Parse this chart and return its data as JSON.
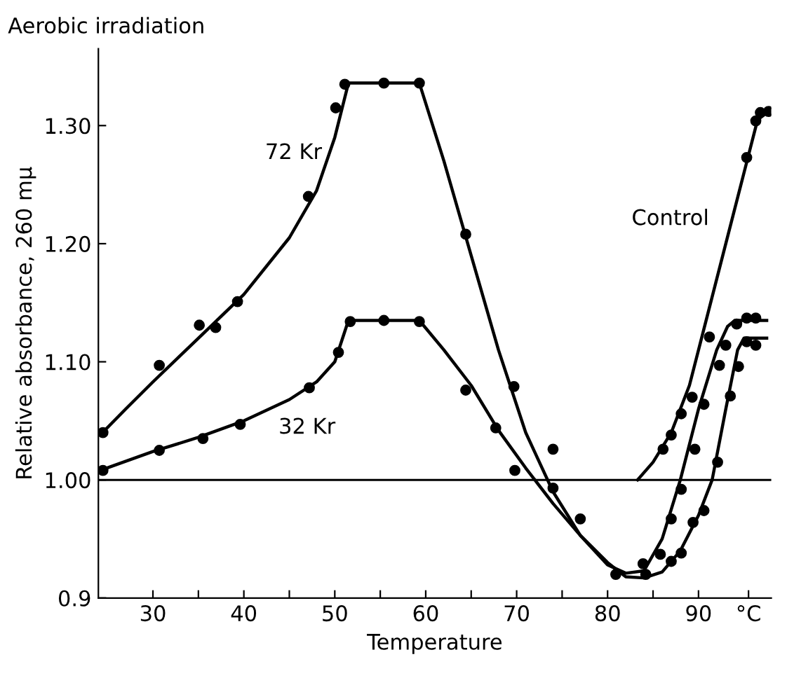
{
  "chart_data": {
    "type": "line",
    "title": "Aerobic irradiation",
    "xlabel": "Temperature",
    "ylabel": "Relative absorbance, 260 mμ",
    "xlim": [
      24,
      98
    ],
    "ylim": [
      0.9,
      1.365
    ],
    "xticks": [
      30,
      {
        "value": 35,
        "label": null
      },
      40,
      {
        "value": 45,
        "label": null
      },
      50,
      {
        "value": 55,
        "label": null
      },
      60,
      {
        "value": 65,
        "label": null
      },
      70,
      {
        "value": 75,
        "label": null
      },
      80,
      {
        "value": 85,
        "label": null
      },
      90,
      {
        "value": 95.5,
        "label": "°C"
      }
    ],
    "yticks": [
      {
        "value": 0.9,
        "label": "0.9"
      },
      {
        "value": 1.0,
        "label": "1.00"
      },
      {
        "value": 1.1,
        "label": "1.10"
      },
      {
        "value": 1.2,
        "label": "1.20"
      },
      {
        "value": 1.3,
        "label": "1.30"
      }
    ],
    "grid": false,
    "legend": false,
    "line_style": "solid",
    "ref_lines": [
      {
        "axis": "y",
        "value": 1.0,
        "label": null,
        "color": "#000000"
      }
    ],
    "series": [
      {
        "name": "72 Kr",
        "color": "#000000",
        "marker": "none",
        "x": [
          24.2,
          27,
          30,
          35,
          40,
          45,
          48,
          50,
          51.5,
          59.3,
          62,
          65,
          68,
          71,
          74,
          77,
          80,
          82,
          84,
          86,
          88,
          90,
          92,
          93.2,
          94,
          97.5
        ],
        "values": [
          1.038,
          1.06,
          1.083,
          1.12,
          1.157,
          1.205,
          1.245,
          1.29,
          1.336,
          1.336,
          1.27,
          1.19,
          1.11,
          1.04,
          0.99,
          0.953,
          0.928,
          0.921,
          0.923,
          0.95,
          1.0,
          1.06,
          1.11,
          1.13,
          1.135,
          1.135
        ]
      },
      {
        "name": "32 Kr",
        "color": "#000000",
        "marker": "none",
        "x": [
          24.2,
          30,
          35,
          40,
          45,
          48,
          50,
          51.5,
          59.3,
          62,
          65,
          68,
          71,
          74,
          77,
          80,
          82,
          84,
          86,
          88,
          90,
          91.5,
          93,
          94.3,
          95,
          97.5
        ],
        "values": [
          1.008,
          1.024,
          1.036,
          1.05,
          1.068,
          1.083,
          1.1,
          1.135,
          1.135,
          1.11,
          1.08,
          1.042,
          1.01,
          0.98,
          0.953,
          0.93,
          0.918,
          0.917,
          0.922,
          0.94,
          0.97,
          1.0,
          1.06,
          1.11,
          1.12,
          1.12
        ]
      },
      {
        "name": "Control",
        "color": "#000000",
        "marker": "none",
        "x": [
          83.3,
          85,
          87,
          89,
          91,
          93,
          95,
          96.5,
          97.7
        ],
        "values": [
          1.0,
          1.015,
          1.04,
          1.08,
          1.14,
          1.2,
          1.26,
          1.305,
          1.312
        ]
      },
      {
        "type": "scatter",
        "color": "#000000",
        "marker": "circle",
        "x": [
          24.5,
          30.7,
          35.1,
          36.9,
          39.3,
          47.1,
          50.1,
          51.1,
          55.4,
          59.3,
          64.4,
          69.7,
          74.0,
          77.0,
          80.9,
          84.2,
          85.8,
          87.0,
          88.1,
          89.6,
          90.6,
          92.3,
          93.0,
          94.2,
          95.3,
          96.3
        ],
        "values": [
          1.04,
          1.097,
          1.131,
          1.129,
          1.151,
          1.24,
          1.315,
          1.335,
          1.336,
          1.336,
          1.208,
          1.079,
          1.026,
          0.967,
          0.92,
          0.92,
          0.937,
          0.967,
          0.992,
          1.026,
          1.064,
          1.097,
          1.114,
          1.132,
          1.137,
          1.137
        ]
      },
      {
        "type": "scatter",
        "color": "#000000",
        "marker": "circle",
        "x": [
          24.5,
          30.7,
          35.5,
          39.6,
          47.2,
          50.4,
          51.7,
          55.4,
          59.3,
          64.4,
          67.7,
          69.8,
          74.0,
          83.9,
          87.0,
          88.1,
          89.4,
          90.6,
          92.1,
          93.5,
          94.4,
          95.3,
          96.3
        ],
        "values": [
          1.008,
          1.025,
          1.035,
          1.047,
          1.078,
          1.108,
          1.134,
          1.135,
          1.134,
          1.076,
          1.044,
          1.008,
          0.993,
          0.929,
          0.931,
          0.938,
          0.964,
          0.974,
          1.015,
          1.071,
          1.096,
          1.117,
          1.114
        ]
      },
      {
        "type": "scatter",
        "color": "#000000",
        "marker": "circle",
        "x": [
          86.1,
          87.0,
          88.1,
          89.3,
          91.2,
          95.3,
          96.3,
          96.8,
          97.7
        ],
        "values": [
          1.026,
          1.038,
          1.056,
          1.07,
          1.121,
          1.273,
          1.304,
          1.311,
          1.312
        ]
      }
    ]
  }
}
